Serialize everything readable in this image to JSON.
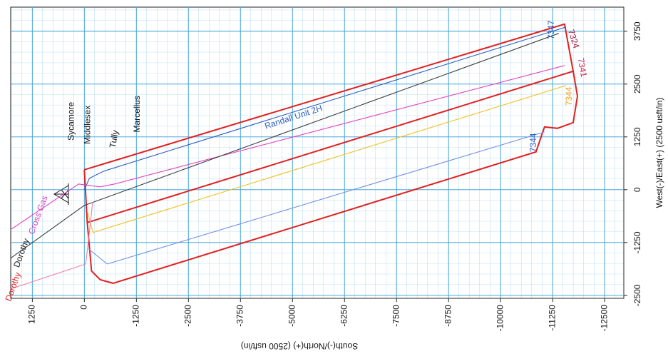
{
  "chart_data": {
    "type": "line",
    "x_label": "South(-)/North(+) (2500 usft/in)",
    "y_label": "West(-)/East(+) (2500 usft/in)",
    "xlim": [
      1770,
      -12960
    ],
    "ylim": [
      -2570,
      4320
    ],
    "xticks": [
      1250,
      0,
      -1250,
      -2500,
      -3750,
      -5000,
      -6250,
      -7500,
      -8750,
      -10000,
      -11250,
      -12500
    ],
    "yticks": [
      -2500,
      -1250,
      0,
      1250,
      2500,
      3750
    ],
    "grid": true,
    "series": [
      {
        "color": "#e02020",
        "x": [
          0,
          -11537,
          -11744,
          -69,
          0
        ],
        "values": [
          473,
          3918,
          2804,
          -777,
          473
        ]
      },
      {
        "color": "#e02020",
        "x": [
          -69,
          -172,
          -379,
          -689,
          -10849,
          -11055,
          -11365,
          -11744,
          -11847,
          -11744
        ],
        "values": [
          -777,
          -1925,
          -2128,
          -2213,
          895,
          1486,
          1453,
          1588,
          2213,
          2804
        ]
      },
      {
        "color": "#3060c0",
        "x": [
          0,
          -121,
          -465,
          -11572
        ],
        "values": [
          0,
          270,
          439,
          3851
        ]
      },
      {
        "color": "#e040c0",
        "x": [
          1774,
          138,
          -379,
          -723,
          -11537
        ],
        "values": [
          -946,
          135,
          68,
          135,
          2939
        ]
      },
      {
        "color": "#f0c020",
        "x": [
          -69,
          -207,
          -11572
        ],
        "values": [
          -500,
          -1013,
          2466
        ]
      },
      {
        "color": "#404040",
        "x": [
          1774,
          0,
          -11400
        ],
        "values": [
          -1621,
          -372,
          3700
        ]
      },
      {
        "color": "#7090e0",
        "x": [
          -100,
          -551,
          -11055
        ],
        "values": [
          -1400,
          -1757,
          1368
        ]
      },
      {
        "color": "#f080a0",
        "x": [
          1774,
          -34,
          -200
        ],
        "values": [
          -2348,
          -1757,
          -300
        ]
      }
    ],
    "annotations": [
      {
        "text": "Randall Unit 2H",
        "x": -5028,
        "y": 1706,
        "color": "#3060c0"
      },
      {
        "text": "7347",
        "x": -11227,
        "y": 3783,
        "color": "#3060c0"
      },
      {
        "text": "7324",
        "x": -11744,
        "y": 3564,
        "color": "#a02040"
      },
      {
        "text": "7341",
        "x": -11950,
        "y": 2888,
        "color": "#d02050"
      },
      {
        "text": "7344",
        "x": -11658,
        "y": 2213,
        "color": "#f0a020"
      },
      {
        "text": "7344",
        "x": -10797,
        "y": 1115,
        "color": "#3060c0"
      },
      {
        "text": "Sycamore",
        "x": 310,
        "y": 1621,
        "color": "#111111"
      },
      {
        "text": "Middlesex",
        "x": -86,
        "y": 1537,
        "color": "#111111"
      },
      {
        "text": "Tully",
        "x": -723,
        "y": 1199,
        "color": "#111111"
      },
      {
        "text": "Marcellus",
        "x": -1274,
        "y": 1790,
        "color": "#111111"
      },
      {
        "text": "Dorothy",
        "x": 1700,
        "y": -2300,
        "color": "#e02020"
      },
      {
        "text": "Dorothy",
        "x": 1500,
        "y": -1500,
        "color": "#222222"
      },
      {
        "text": "Cross Gas",
        "x": 1100,
        "y": -600,
        "color": "#e040c0"
      }
    ]
  }
}
